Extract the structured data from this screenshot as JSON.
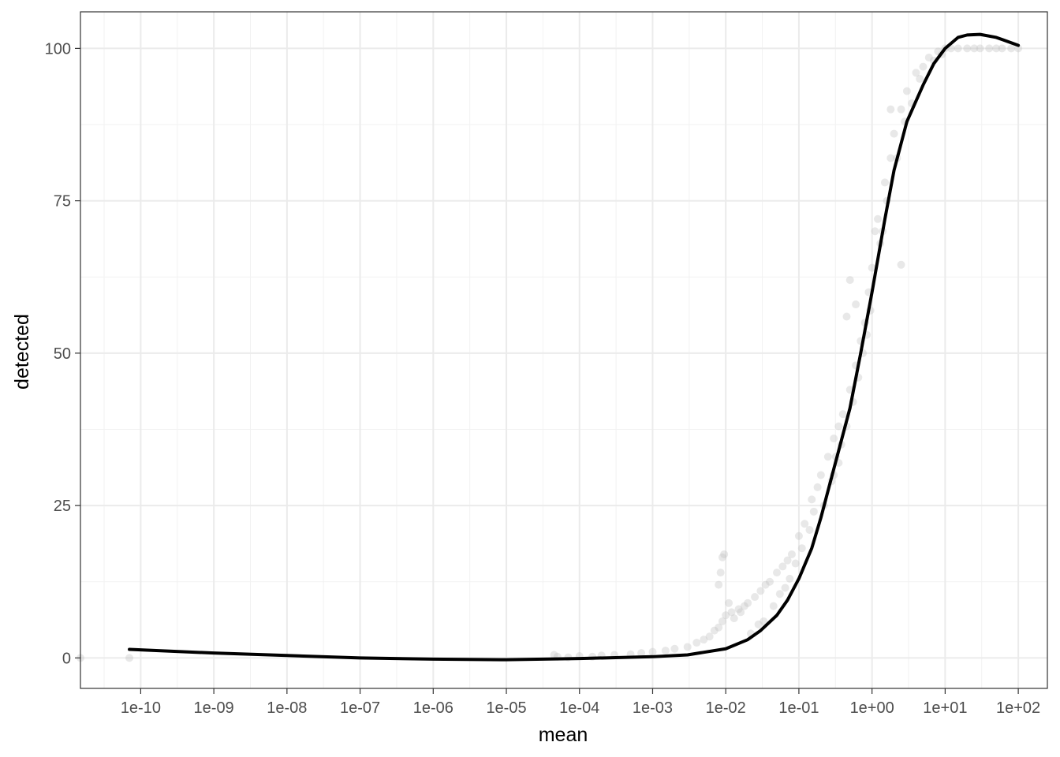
{
  "chart_data": {
    "type": "scatter",
    "title": "",
    "xlabel": "mean",
    "ylabel": "detected",
    "x_scale": "log10",
    "xlim": [
      1.5e-11,
      250
    ],
    "ylim": [
      -5,
      106
    ],
    "grid": true,
    "legend": "none",
    "x_ticks": [
      {
        "value": 1e-10,
        "label": "1e-10"
      },
      {
        "value": 1e-09,
        "label": "1e-09"
      },
      {
        "value": 1e-08,
        "label": "1e-08"
      },
      {
        "value": 1e-07,
        "label": "1e-07"
      },
      {
        "value": 1e-06,
        "label": "1e-06"
      },
      {
        "value": 1e-05,
        "label": "1e-05"
      },
      {
        "value": 0.0001,
        "label": "1e-04"
      },
      {
        "value": 0.001,
        "label": "1e-03"
      },
      {
        "value": 0.01,
        "label": "1e-02"
      },
      {
        "value": 0.1,
        "label": "1e-01"
      },
      {
        "value": 1,
        "label": "1e+00"
      },
      {
        "value": 10,
        "label": "1e+01"
      },
      {
        "value": 100,
        "label": "1e+02"
      }
    ],
    "y_ticks": [
      {
        "value": 0,
        "label": "0"
      },
      {
        "value": 25,
        "label": "25"
      },
      {
        "value": 50,
        "label": "50"
      },
      {
        "value": 75,
        "label": "75"
      },
      {
        "value": 100,
        "label": "100"
      }
    ],
    "colors": {
      "points": "#bebebe",
      "fit_line": "#000000",
      "grid_major": "#ebebeb",
      "grid_minor": "#f2f2f2",
      "panel_border": "#333333"
    },
    "series": [
      {
        "kind": "points",
        "x": [
          1.5e-11,
          7e-11,
          4.5e-05,
          5e-05,
          7e-05,
          0.0001,
          0.00015,
          0.0002,
          0.0003,
          0.0005,
          0.0007,
          0.001,
          0.0015,
          0.002,
          0.003,
          0.004,
          0.005,
          0.006,
          0.007,
          0.008,
          0.009,
          0.01,
          0.012,
          0.015,
          0.018,
          0.02,
          0.025,
          0.03,
          0.035,
          0.04,
          0.05,
          0.06,
          0.07,
          0.08,
          0.1,
          0.12,
          0.15,
          0.18,
          0.2,
          0.25,
          0.3,
          0.35,
          0.4,
          0.5,
          0.6,
          0.7,
          0.8,
          0.9,
          1.0,
          1.1,
          1.2,
          1.5,
          1.8,
          2,
          2.5,
          3,
          4,
          5,
          6,
          8,
          10,
          12,
          15,
          20,
          25,
          30,
          40,
          50,
          60,
          80,
          100,
          0.009,
          0.0095,
          0.011,
          0.013,
          0.016,
          0.022,
          0.028,
          0.033,
          0.045,
          0.055,
          0.065,
          0.075,
          0.09,
          0.11,
          0.14,
          0.16,
          0.22,
          0.28,
          0.32,
          0.38,
          0.45,
          0.55,
          0.65,
          0.75,
          0.85,
          0.95,
          1.3,
          1.6,
          2.2,
          2.8,
          3.5,
          4.5,
          7,
          9,
          0.5,
          0.45,
          0.6,
          1.4,
          2.5,
          0.008,
          0.0085,
          0.3,
          0.35,
          1.8
        ],
        "y": [
          0,
          0,
          0.5,
          0.2,
          0.1,
          0.3,
          0.2,
          0.4,
          0.5,
          0.6,
          0.8,
          1.0,
          1.2,
          1.5,
          1.8,
          2.5,
          3.0,
          3.5,
          4.5,
          5.0,
          6.0,
          7.0,
          7.5,
          8.0,
          8.5,
          9.0,
          10.0,
          11.0,
          12.0,
          12.5,
          14.0,
          15.0,
          16.0,
          17.0,
          20.0,
          22.0,
          26.0,
          28.0,
          30.0,
          33.0,
          36.0,
          38.0,
          40.0,
          44.0,
          48.0,
          52.0,
          55.0,
          60.0,
          64.0,
          70.0,
          72.0,
          78.0,
          82.0,
          86.0,
          90.0,
          93.0,
          96.0,
          97.0,
          98.5,
          99.5,
          100.0,
          100.0,
          100.0,
          100.0,
          100.0,
          100.0,
          100.0,
          100.0,
          100.0,
          100.0,
          100.0,
          16.5,
          17.0,
          9.0,
          6.5,
          7.5,
          4.0,
          5.5,
          6.0,
          8.5,
          10.5,
          11.5,
          13.0,
          15.5,
          18.0,
          21.0,
          24.0,
          25.0,
          29.0,
          33.0,
          35.0,
          38.0,
          42.0,
          46.0,
          50.0,
          53.0,
          57.0,
          68.0,
          75.0,
          82.0,
          88.0,
          91.0,
          95.0,
          98.0,
          99.0,
          62.0,
          56.0,
          58.0,
          70.0,
          64.5,
          12.0,
          14.0,
          30.0,
          32.0,
          90.0
        ]
      },
      {
        "kind": "line",
        "x": [
          7e-11,
          1e-09,
          1e-08,
          1e-07,
          1e-06,
          1e-05,
          0.0001,
          0.001,
          0.003,
          0.01,
          0.02,
          0.03,
          0.05,
          0.07,
          0.1,
          0.15,
          0.2,
          0.3,
          0.5,
          0.7,
          1,
          1.5,
          2,
          3,
          5,
          7,
          10,
          15,
          20,
          30,
          50,
          100
        ],
        "y": [
          1.4,
          0.8,
          0.4,
          0.0,
          -0.2,
          -0.3,
          -0.1,
          0.2,
          0.5,
          1.5,
          3.0,
          4.5,
          7.0,
          9.5,
          13.0,
          18.0,
          23.0,
          31.0,
          41.0,
          50.0,
          60.0,
          72.0,
          80.0,
          88.0,
          94.0,
          97.5,
          100.0,
          101.8,
          102.2,
          102.3,
          101.8,
          100.5
        ]
      }
    ]
  }
}
